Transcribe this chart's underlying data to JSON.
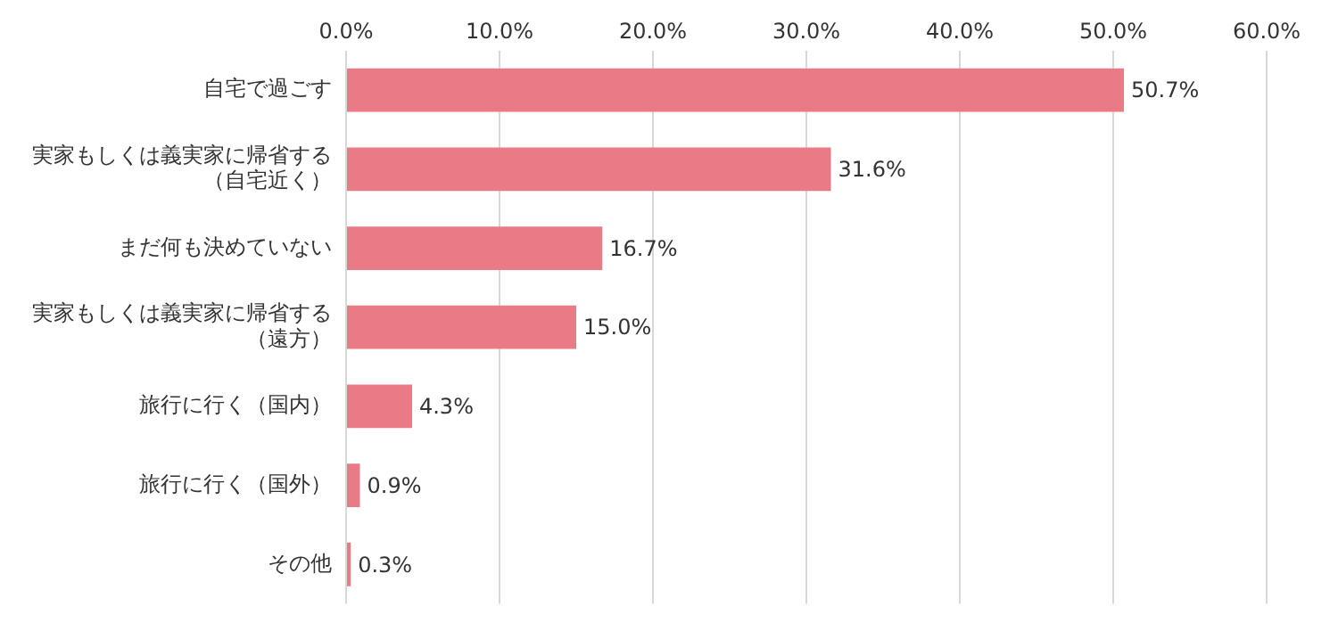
{
  "chart_data": {
    "type": "bar",
    "orientation": "horizontal",
    "categories": [
      "自宅で過ごす",
      "実家もしくは義実家に帰省する（自宅近く）",
      "まだ何も決めていない",
      "実家もしくは義実家に帰省する（遠方）",
      "旅行に行く（国内）",
      "旅行に行く（国外）",
      "その他"
    ],
    "values": [
      50.7,
      31.6,
      16.7,
      15.0,
      4.3,
      0.9,
      0.3
    ],
    "value_labels": [
      "50.7%",
      "31.6%",
      "16.7%",
      "15.0%",
      "4.3%",
      "0.9%",
      "0.3%"
    ],
    "color": "#e97a86",
    "xlim": [
      0,
      60
    ],
    "xticks": [
      {
        "value": 0,
        "label": "0.0%"
      },
      {
        "value": 10,
        "label": "10.0%"
      },
      {
        "value": 20,
        "label": "20.0%"
      },
      {
        "value": 30,
        "label": "30.0%"
      },
      {
        "value": 40,
        "label": "40.0%"
      },
      {
        "value": 50,
        "label": "50.0%"
      },
      {
        "value": 60,
        "label": "60.0%"
      }
    ],
    "grid": "x",
    "legend": false
  }
}
